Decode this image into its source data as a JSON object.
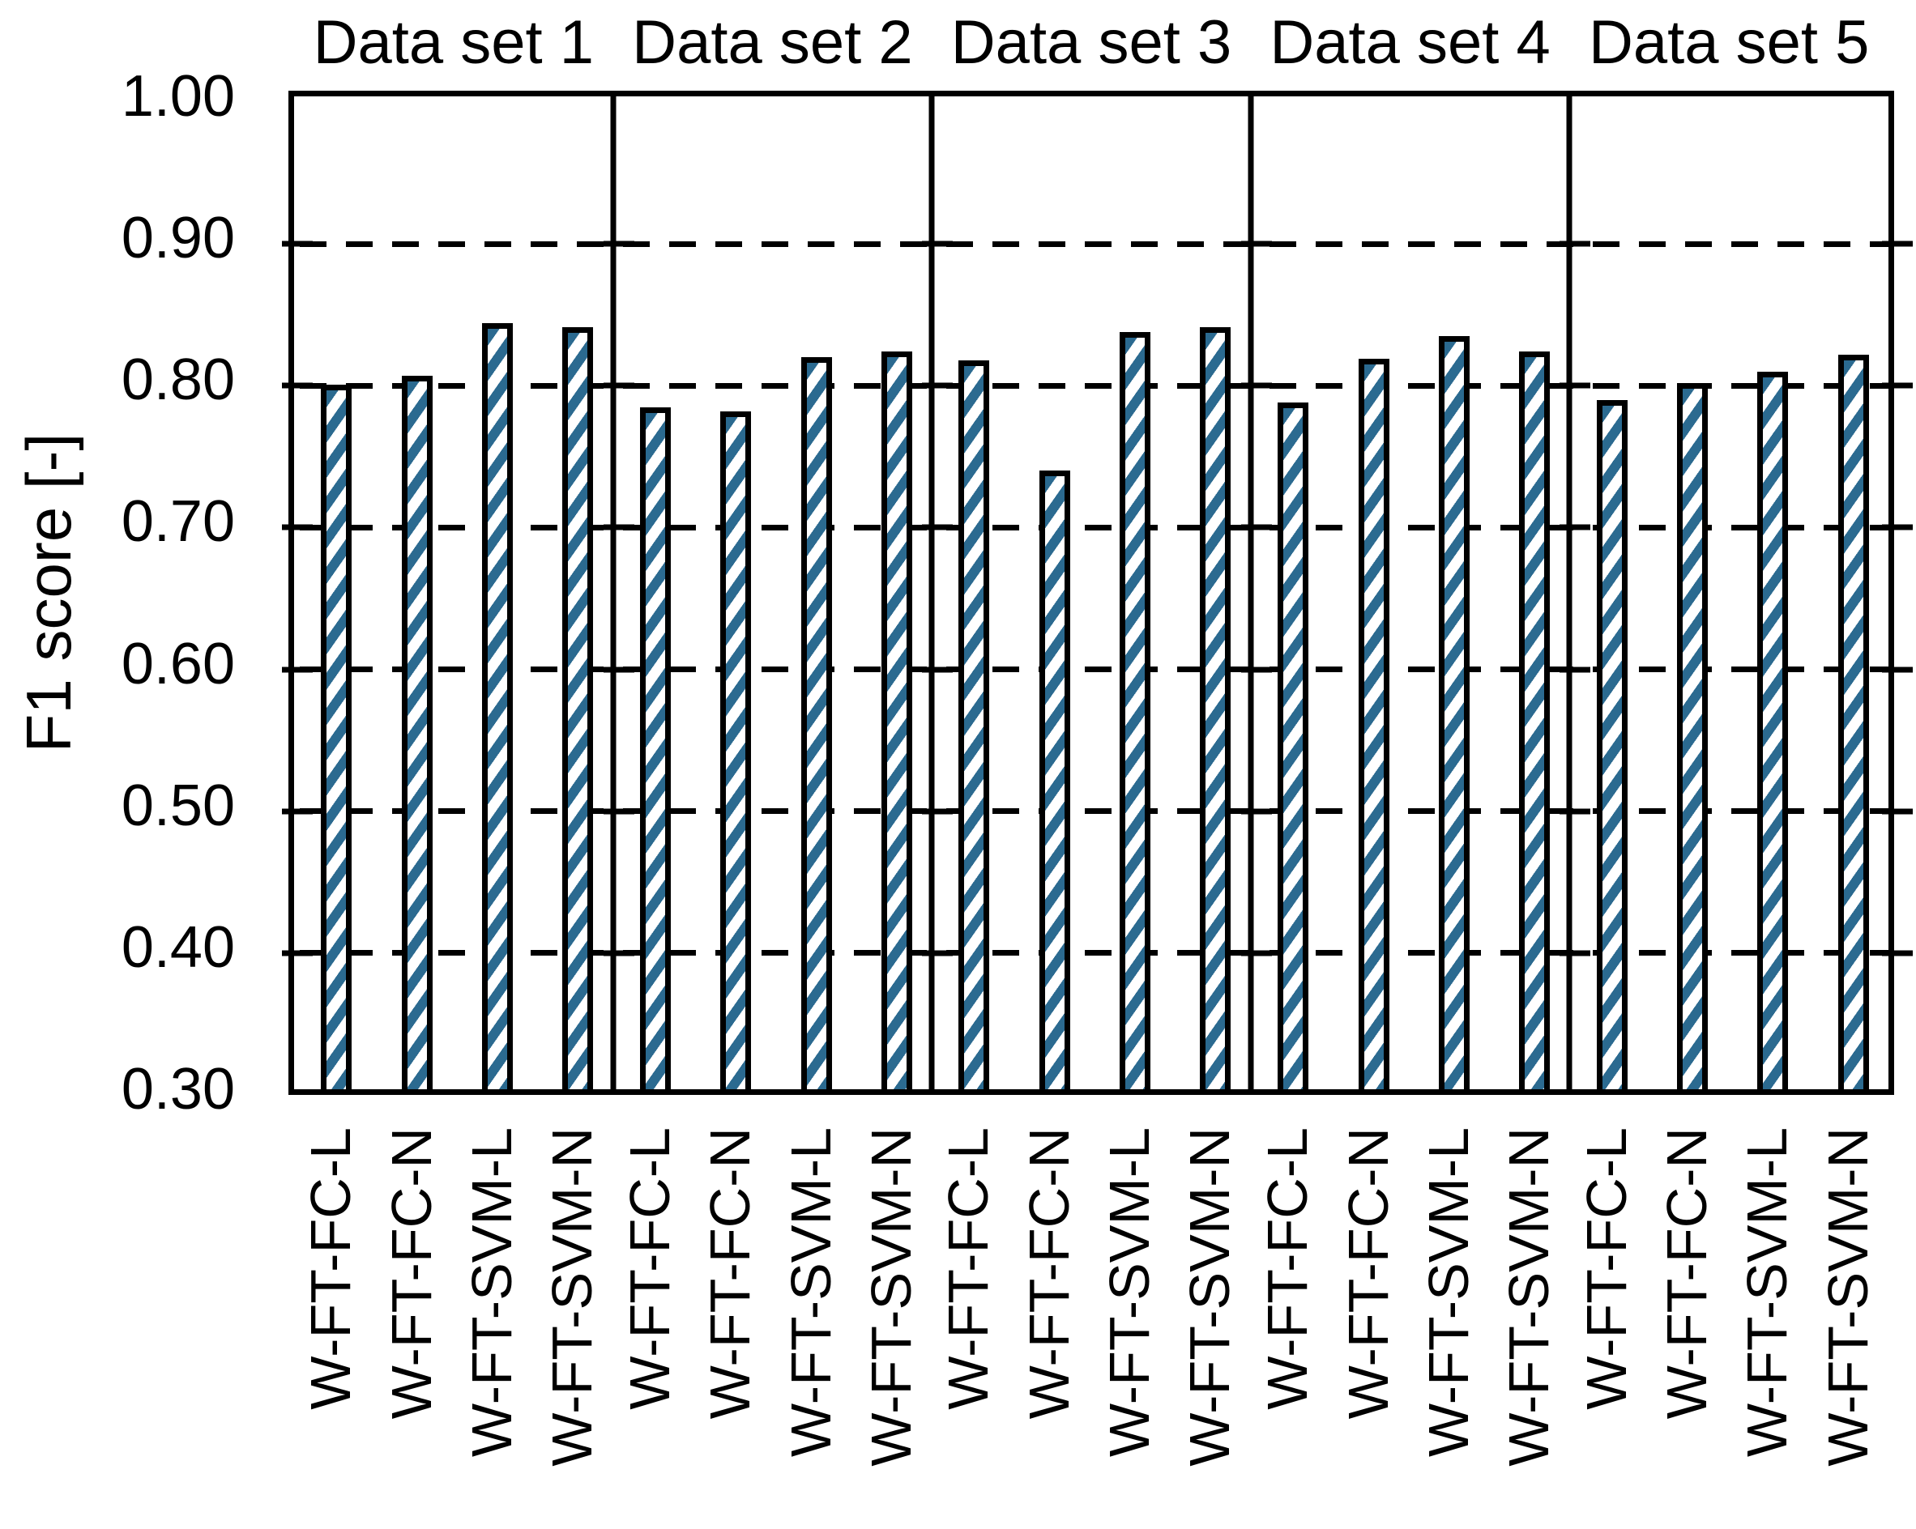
{
  "chart_data": {
    "type": "bar",
    "title": "",
    "xlabel": "",
    "ylabel": "F1 score [-]",
    "ylim": [
      0.3,
      1.0
    ],
    "ytick_labels": [
      "1.00",
      "0.90",
      "0.80",
      "0.70",
      "0.60",
      "0.50",
      "0.40",
      "0.30"
    ],
    "gridlines": [
      0.9,
      0.8,
      0.7,
      0.6,
      0.5,
      0.4
    ],
    "grid_style": "dashed horizontal",
    "legend": "none",
    "bar_style": {
      "hatch": "diagonal-forward-slash",
      "hatch_color": "#2b6a90",
      "fill_color": "#ffffff",
      "border_color": "#000000"
    },
    "categories": [
      "W-FT-FC-L",
      "W-FT-FC-N",
      "W-FT-SVM-L",
      "W-FT-SVM-N"
    ],
    "panels": [
      {
        "label": "Data set 1",
        "values": [
          0.797,
          0.803,
          0.84,
          0.837
        ]
      },
      {
        "label": "Data set 2",
        "values": [
          0.781,
          0.778,
          0.816,
          0.82
        ]
      },
      {
        "label": "Data set 3",
        "values": [
          0.814,
          0.736,
          0.834,
          0.837
        ]
      },
      {
        "label": "Data set 4",
        "values": [
          0.784,
          0.815,
          0.831,
          0.82
        ]
      },
      {
        "label": "Data set 5",
        "values": [
          0.786,
          0.798,
          0.806,
          0.818
        ]
      }
    ]
  }
}
